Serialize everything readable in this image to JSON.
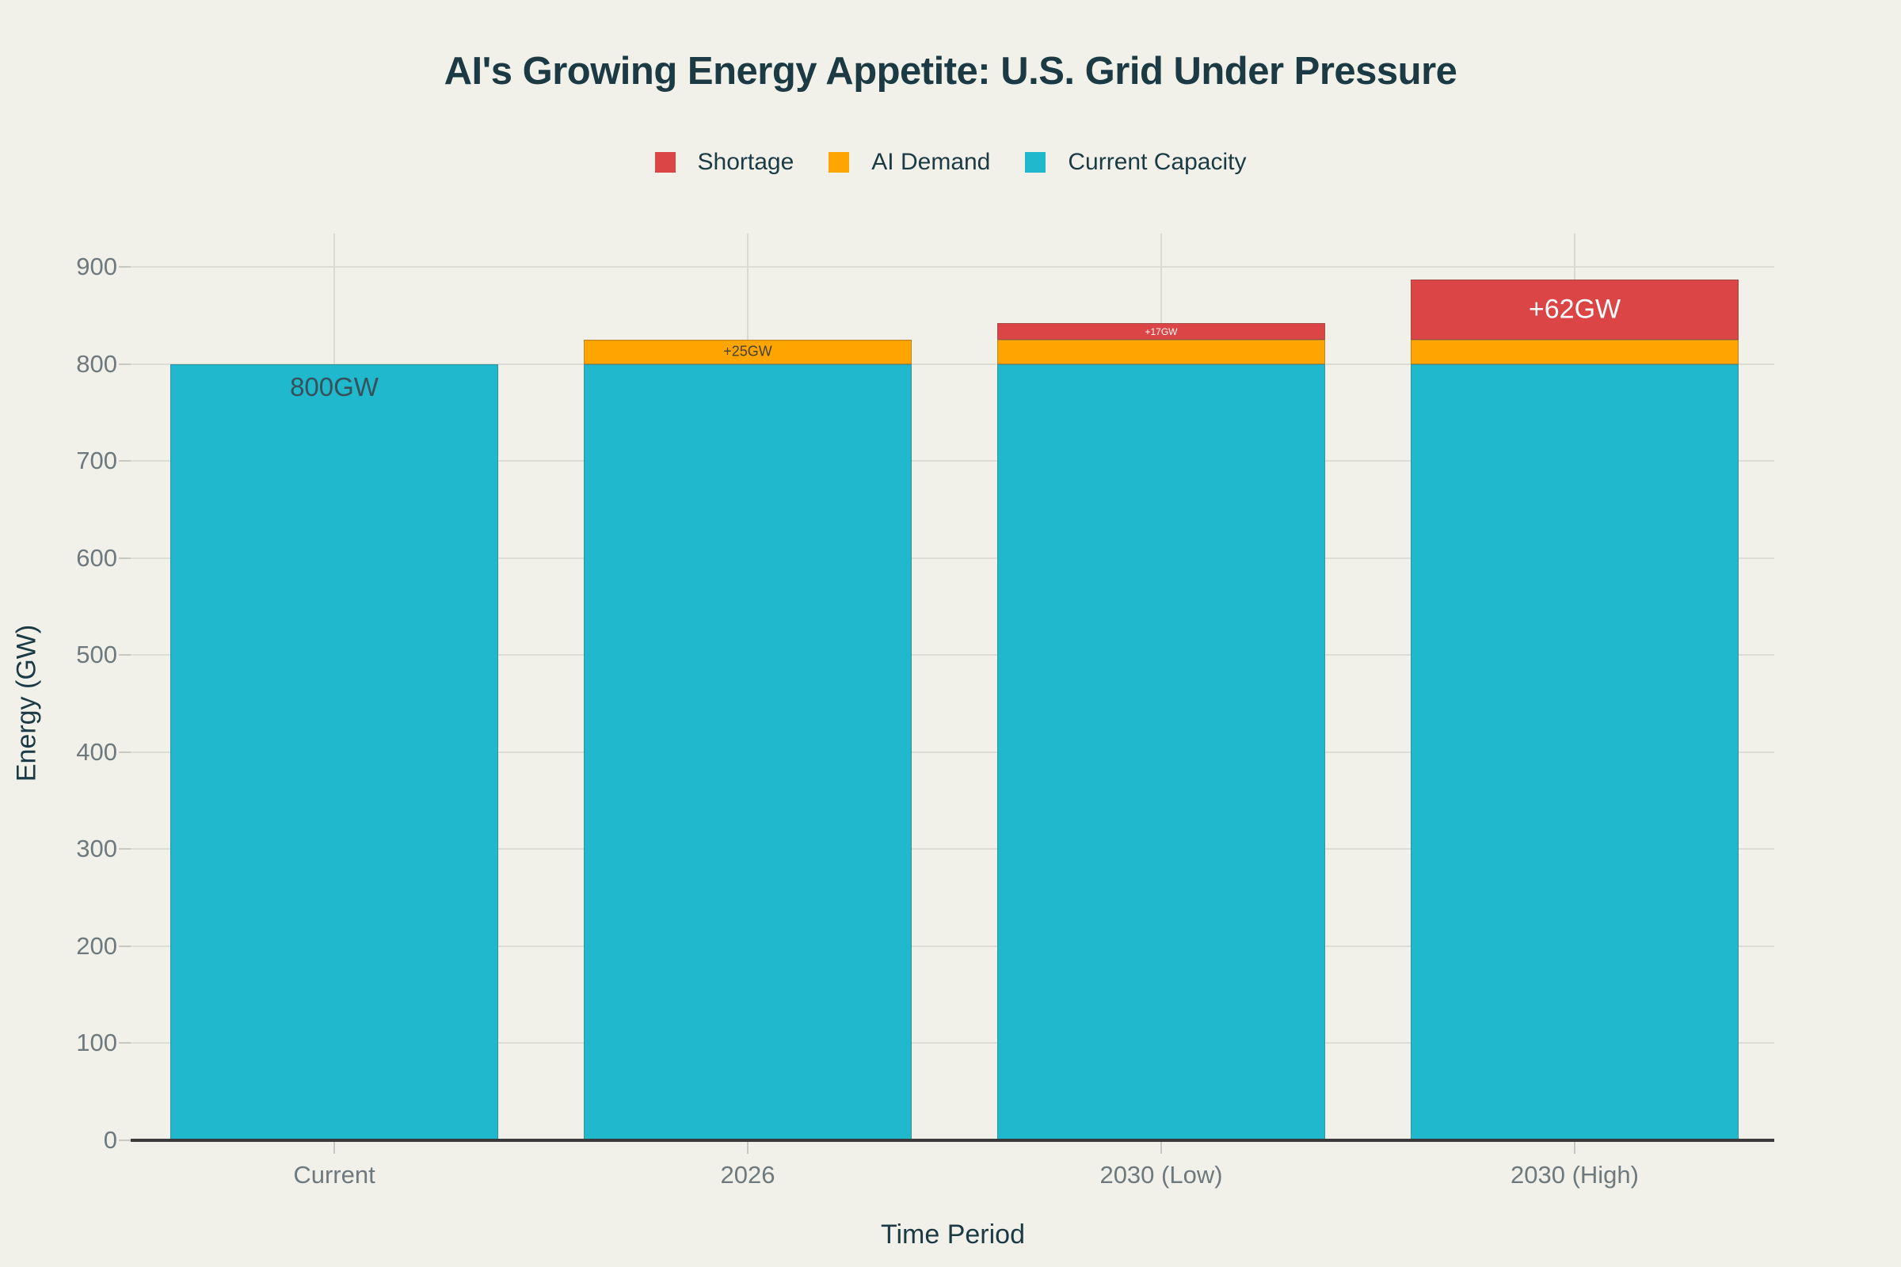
{
  "title": "AI's Growing Energy Appetite: U.S. Grid Under Pressure",
  "legend": {
    "items": [
      {
        "label": "Shortage",
        "color": "#db4545"
      },
      {
        "label": "AI Demand",
        "color": "#ffa502"
      },
      {
        "label": "Current Capacity",
        "color": "#1fb8cd"
      }
    ]
  },
  "colors": {
    "background": "#f1f1ea",
    "title_text": "#1b3a44",
    "tick_text": "#6e797e",
    "grid": "#dcded6",
    "axis_line": "#3a3a3a",
    "shortage": "#db4545",
    "ai_demand": "#ffa502",
    "current_capacity": "#1fb8cd"
  },
  "chart_data": {
    "type": "bar",
    "stacked": true,
    "title": "AI's Growing Energy Appetite: U.S. Grid Under Pressure",
    "xlabel": "Time Period",
    "ylabel": "Energy (GW)",
    "categories": [
      "Current",
      "2026",
      "2030 (Low)",
      "2030 (High)"
    ],
    "series": [
      {
        "name": "Current Capacity",
        "color": "#1fb8cd",
        "values": [
          800,
          800,
          800,
          800
        ]
      },
      {
        "name": "AI Demand",
        "color": "#ffa502",
        "values": [
          0,
          25,
          25,
          25
        ]
      },
      {
        "name": "Shortage",
        "color": "#db4545",
        "values": [
          0,
          0,
          17,
          62
        ]
      }
    ],
    "totals": [
      800,
      825,
      842,
      887
    ],
    "bar_labels": [
      {
        "category": "Current",
        "series": "Current Capacity",
        "text": "800GW",
        "color": "#37505a",
        "size": 33,
        "placement": "inside-top"
      },
      {
        "category": "2026",
        "series": "AI Demand",
        "text": "+25GW",
        "color": "#44412f",
        "size": 18,
        "placement": "center"
      },
      {
        "category": "2030 (Low)",
        "series": "Shortage",
        "text": "+17GW",
        "color": "#ffffff",
        "size": 12,
        "placement": "center"
      },
      {
        "category": "2030 (High)",
        "series": "Shortage",
        "text": "+62GW",
        "color": "#ffffff",
        "size": 34,
        "placement": "center"
      }
    ],
    "ylim": [
      0,
      931
    ],
    "yticks": [
      0,
      100,
      200,
      300,
      400,
      500,
      600,
      700,
      800,
      900
    ],
    "grid": true,
    "legend_position": "top-center"
  }
}
